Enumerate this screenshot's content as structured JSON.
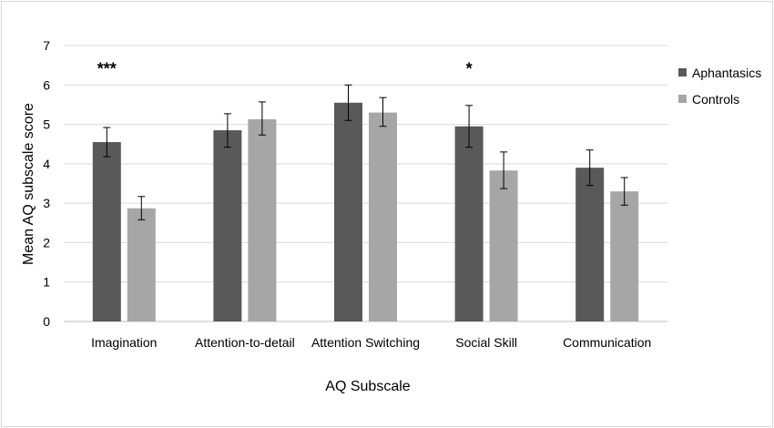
{
  "chart_data": {
    "type": "bar",
    "title": "",
    "xlabel": "AQ Subscale",
    "ylabel": "Mean AQ subscale score",
    "ylim": [
      0,
      7
    ],
    "yticks": [
      "0",
      "1",
      "2",
      "3",
      "4",
      "5",
      "6",
      "7"
    ],
    "grid": "horizontal",
    "legend_position": "right",
    "categories": [
      "Imagination",
      "Attention-to-detail",
      "Attention Switching",
      "Social Skill",
      "Communication"
    ],
    "series": [
      {
        "name": "Aphantasics",
        "color": "#595959",
        "values": [
          4.55,
          4.85,
          5.55,
          4.95,
          3.9
        ],
        "error_low": [
          4.18,
          4.42,
          5.1,
          4.42,
          3.45
        ],
        "error_high": [
          4.92,
          5.27,
          6.0,
          5.48,
          4.35
        ]
      },
      {
        "name": "Controls",
        "color": "#a6a6a6",
        "values": [
          2.87,
          5.13,
          5.3,
          3.83,
          3.3
        ],
        "error_low": [
          2.58,
          4.73,
          4.95,
          3.37,
          2.95
        ],
        "error_high": [
          3.17,
          5.57,
          5.68,
          4.3,
          3.65
        ]
      }
    ],
    "annotations": [
      {
        "category": "Imagination",
        "text": "***",
        "y": 6.55
      },
      {
        "category": "Social Skill",
        "text": "*",
        "y": 6.55
      }
    ]
  }
}
